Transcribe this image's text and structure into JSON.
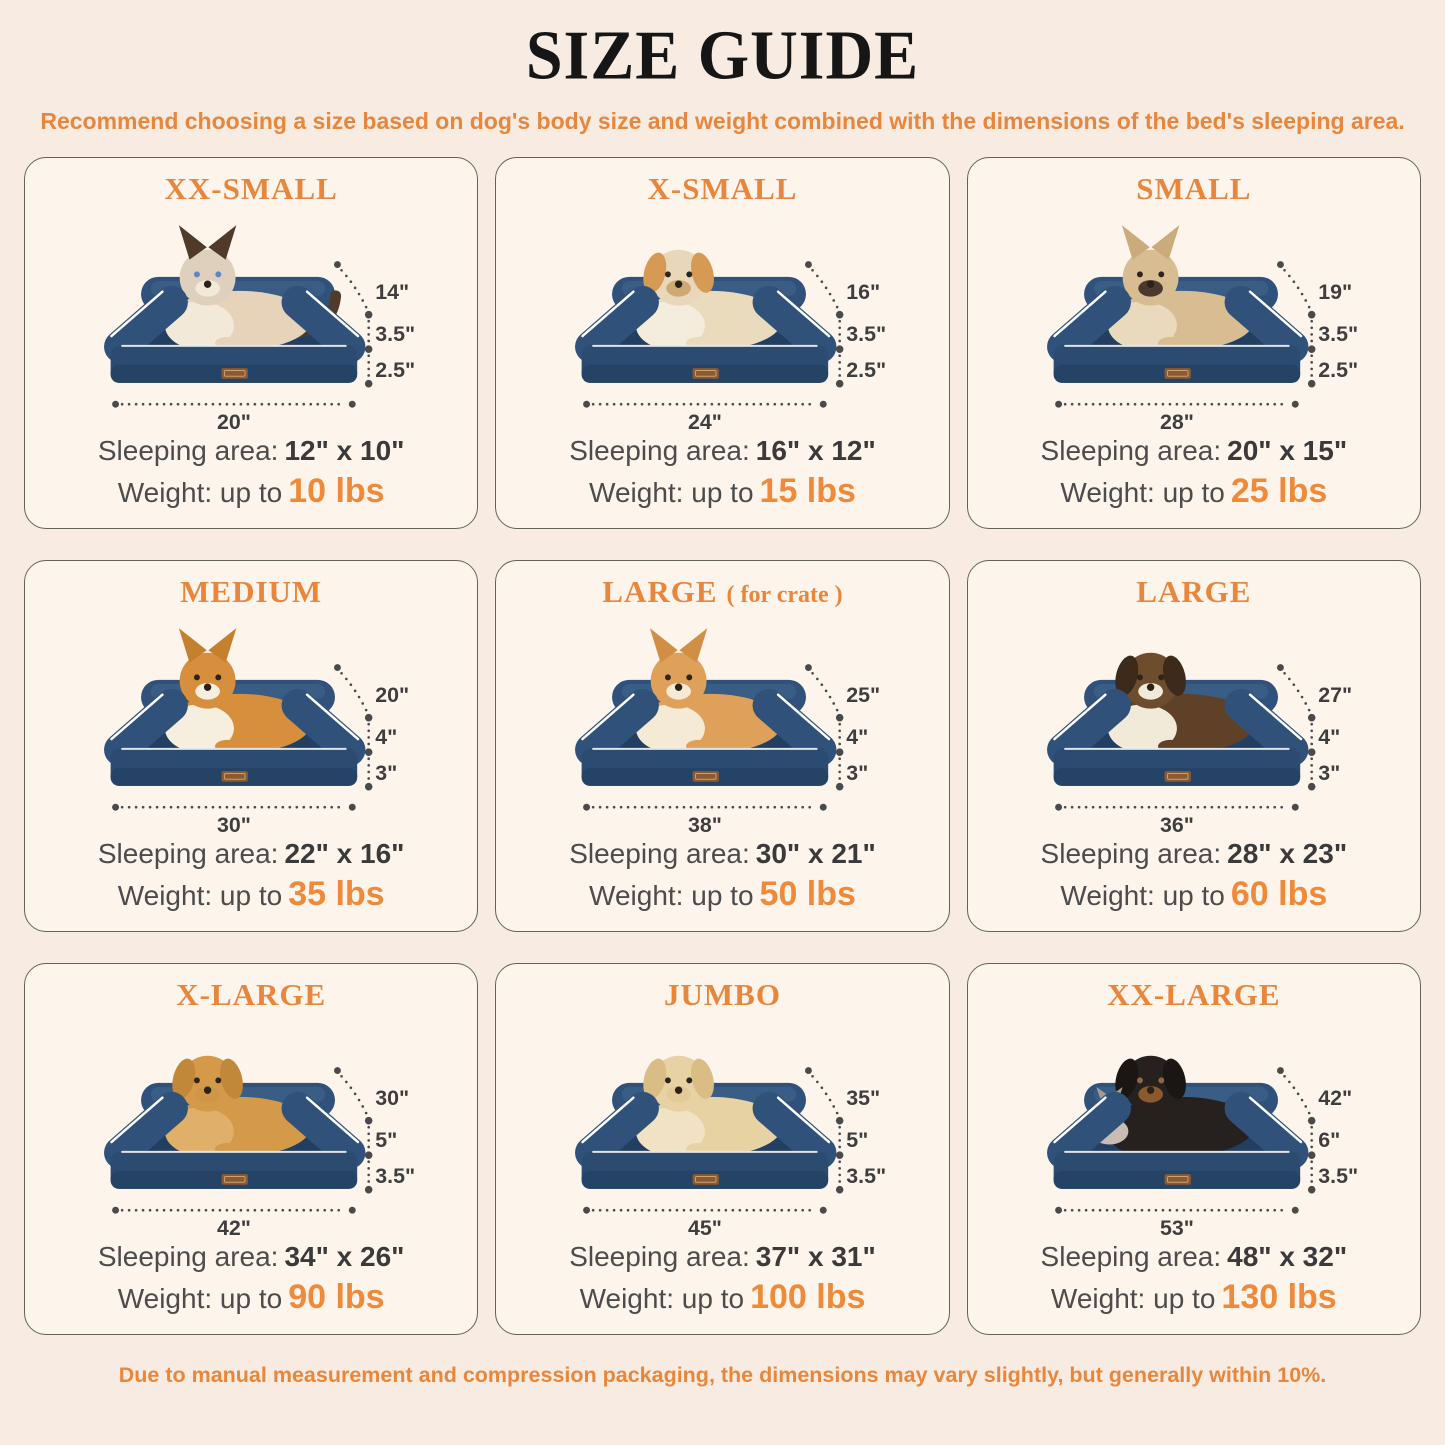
{
  "page": {
    "title": "SIZE GUIDE",
    "subtitle": "Recommend choosing a size based on dog's body size and weight combined with the dimensions of the bed's sleeping area.",
    "footer": "Due to manual measurement and compression packaging, the dimensions may vary slightly, but generally within 10%.",
    "colors": {
      "background": "#f8ece2",
      "card_background": "#fdf4ec",
      "card_border": "#63635a",
      "accent_orange": "#e8863c",
      "weight_orange": "#ee8a3a",
      "title_color": "#161616",
      "text_color": "#4c4c4c",
      "dimension_text": "#3e3e3e",
      "bed_navy": "#2b4b70",
      "bed_bolster": "#30527a",
      "bed_cushion": "#223f62",
      "piping_white": "#ffffff"
    }
  },
  "cards": [
    {
      "title": "XX-SMALL",
      "title_suffix": "",
      "pet": "ragdoll-cat",
      "dims": {
        "height": "14\"",
        "upper": "3.5\"",
        "lower": "2.5\"",
        "width": "20\""
      },
      "sleeping_label": "Sleeping area:",
      "sleeping_value": "12\" x 10\"",
      "weight_label": "Weight: up to",
      "weight_value": "10 lbs",
      "pet_style": {
        "ear_type": "pointy",
        "has_tail": true,
        "has_companion": false,
        "body": "#e6d3ba",
        "chest": "#f3e9d9",
        "head": "#ded0bd",
        "ear": "#4f3b28",
        "muzzle": "#f3e9d9",
        "eye": "#5d87c0"
      }
    },
    {
      "title": "X-SMALL",
      "title_suffix": "",
      "pet": "shih-tzu",
      "dims": {
        "height": "16\"",
        "upper": "3.5\"",
        "lower": "2.5\"",
        "width": "24\""
      },
      "sleeping_label": "Sleeping area:",
      "sleeping_value": "16\" x 12\"",
      "weight_label": "Weight: up to",
      "weight_value": "15 lbs",
      "pet_style": {
        "ear_type": "floppy",
        "has_tail": false,
        "has_companion": false,
        "body": "#eadbbd",
        "chest": "#f4ecdc",
        "head": "#e8d7b8",
        "ear": "#d79a55",
        "muzzle": "#cfa873",
        "eye": "#2d241c"
      }
    },
    {
      "title": "SMALL",
      "title_suffix": "",
      "pet": "french-bulldog",
      "dims": {
        "height": "19\"",
        "upper": "3.5\"",
        "lower": "2.5\"",
        "width": "28\""
      },
      "sleeping_label": "Sleeping area:",
      "sleeping_value": "20\" x 15\"",
      "weight_label": "Weight: up to",
      "weight_value": "25 lbs",
      "pet_style": {
        "ear_type": "pointy",
        "has_tail": false,
        "has_companion": false,
        "body": "#d8bd92",
        "chest": "#e9d9bd",
        "head": "#d8bd92",
        "ear": "#c9ab7c",
        "muzzle": "#4a3a2d",
        "eye": "#2d241c"
      }
    },
    {
      "title": "MEDIUM",
      "title_suffix": "",
      "pet": "corgi",
      "dims": {
        "height": "20\"",
        "upper": "4\"",
        "lower": "3\"",
        "width": "30\""
      },
      "sleeping_label": "Sleeping area:",
      "sleeping_value": "22\" x 16\"",
      "weight_label": "Weight: up to",
      "weight_value": "35 lbs",
      "pet_style": {
        "ear_type": "pointy",
        "has_tail": false,
        "has_companion": false,
        "body": "#d78f3e",
        "chest": "#f6efdf",
        "head": "#d78f3e",
        "ear": "#c5802f",
        "muzzle": "#f6efdf",
        "eye": "#2d241c"
      }
    },
    {
      "title": "LARGE",
      "title_suffix": "( for crate )",
      "pet": "shiba-inu",
      "dims": {
        "height": "25\"",
        "upper": "4\"",
        "lower": "3\"",
        "width": "38\""
      },
      "sleeping_label": "Sleeping area:",
      "sleeping_value": "30\" x 21\"",
      "weight_label": "Weight: up to",
      "weight_value": "50 lbs",
      "pet_style": {
        "ear_type": "pointy",
        "has_tail": false,
        "has_companion": false,
        "body": "#dfa05a",
        "chest": "#f5ead6",
        "head": "#dfa05a",
        "ear": "#d18f45",
        "muzzle": "#f5ead6",
        "eye": "#2d241c"
      }
    },
    {
      "title": "LARGE",
      "title_suffix": "",
      "pet": "border-collie",
      "dims": {
        "height": "27\"",
        "upper": "4\"",
        "lower": "3\"",
        "width": "36\""
      },
      "sleeping_label": "Sleeping area:",
      "sleeping_value": "28\" x 23\"",
      "weight_label": "Weight: up to",
      "weight_value": "60 lbs",
      "pet_style": {
        "ear_type": "floppy",
        "has_tail": false,
        "has_companion": false,
        "body": "#5f4128",
        "chest": "#f2ead9",
        "head": "#6e4d2e",
        "ear": "#3c2a1a",
        "muzzle": "#f2ead9",
        "eye": "#2d241c"
      }
    },
    {
      "title": "X-LARGE",
      "title_suffix": "",
      "pet": "golden-retriever",
      "dims": {
        "height": "30\"",
        "upper": "5\"",
        "lower": "3.5\"",
        "width": "42\""
      },
      "sleeping_label": "Sleeping area:",
      "sleeping_value": "34\" x 26\"",
      "weight_label": "Weight: up to",
      "weight_value": "90 lbs",
      "pet_style": {
        "ear_type": "floppy",
        "has_tail": false,
        "has_companion": false,
        "body": "#d49a4a",
        "chest": "#e0b06a",
        "head": "#d49a4a",
        "ear": "#c2883a",
        "muzzle": "#cf9648",
        "eye": "#2d241c"
      }
    },
    {
      "title": "JUMBO",
      "title_suffix": "",
      "pet": "labrador",
      "dims": {
        "height": "35\"",
        "upper": "5\"",
        "lower": "3.5\"",
        "width": "45\""
      },
      "sleeping_label": "Sleeping area:",
      "sleeping_value": "37\" x 31\"",
      "weight_label": "Weight: up to",
      "weight_value": "100 lbs",
      "pet_style": {
        "ear_type": "floppy",
        "has_tail": false,
        "has_companion": false,
        "body": "#e7d2a4",
        "chest": "#f0e2c2",
        "head": "#e7d2a4",
        "ear": "#d9bd85",
        "muzzle": "#e3cb97",
        "eye": "#2d241c"
      }
    },
    {
      "title": "XX-LARGE",
      "title_suffix": "",
      "pet": "rottweiler",
      "dims": {
        "height": "42\"",
        "upper": "6\"",
        "lower": "3.5\"",
        "width": "53\""
      },
      "sleeping_label": "Sleeping area:",
      "sleeping_value": "48\" x 32\"",
      "weight_label": "Weight: up to",
      "weight_value": "130 lbs",
      "pet_style": {
        "ear_type": "floppy",
        "has_tail": false,
        "has_companion": true,
        "body": "#26211e",
        "chest": "#26211e",
        "head": "#26211e",
        "ear": "#1a1614",
        "muzzle": "#8a5a2e",
        "eye": "#8a6a4a"
      }
    }
  ]
}
